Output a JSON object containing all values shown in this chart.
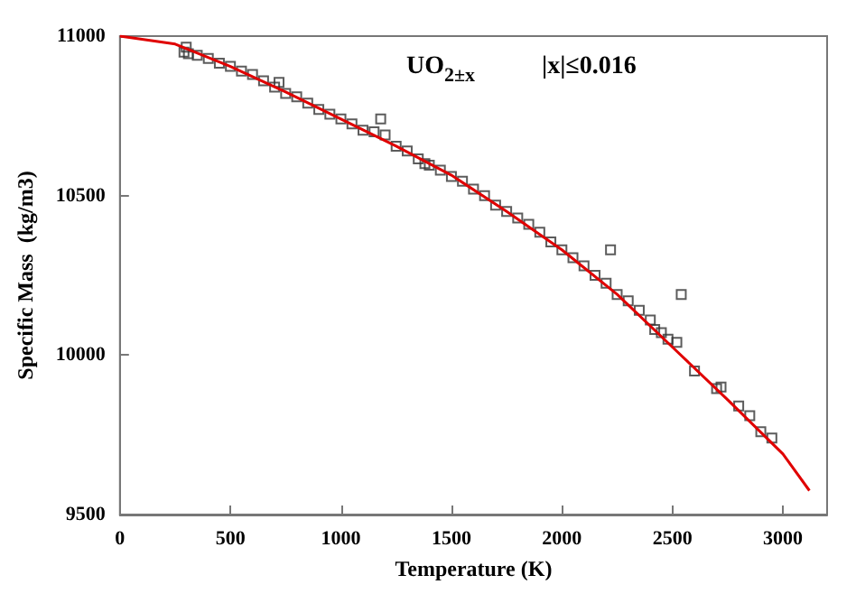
{
  "chart_data": {
    "type": "scatter",
    "xlabel": "Temperature (K)",
    "ylabel": "Specific Mass  (kg/m3)",
    "xlim": [
      0,
      3200
    ],
    "xticks": [
      0,
      500,
      1000,
      1500,
      2000,
      2500,
      3000
    ],
    "ylim": [
      9500,
      11000
    ],
    "yticks": [
      9500,
      10000,
      10500,
      11000
    ],
    "grid": false,
    "annotations": [
      "UO$_{2±x}$",
      "|x|≤0.016"
    ],
    "series": [
      {
        "color": "#333333",
        "marker": "square",
        "x": [
          290,
          300,
          310,
          350,
          400,
          450,
          500,
          550,
          600,
          650,
          700,
          720,
          750,
          800,
          850,
          900,
          950,
          1000,
          1050,
          1100,
          1150,
          1180,
          1200,
          1250,
          1300,
          1350,
          1380,
          1400,
          1450,
          1500,
          1550,
          1600,
          1650,
          1700,
          1750,
          1800,
          1850,
          1900,
          1950,
          2000,
          2050,
          2100,
          2150,
          2200,
          2220,
          2250,
          2300,
          2350,
          2400,
          2420,
          2450,
          2480,
          2520,
          2540,
          2600,
          2700,
          2720,
          2800,
          2850,
          2900,
          2950
        ],
        "values": [
          10950,
          10965,
          10945,
          10940,
          10930,
          10915,
          10905,
          10890,
          10880,
          10860,
          10840,
          10855,
          10820,
          10810,
          10790,
          10770,
          10755,
          10740,
          10725,
          10705,
          10700,
          10740,
          10690,
          10655,
          10640,
          10615,
          10600,
          10595,
          10580,
          10560,
          10545,
          10520,
          10500,
          10470,
          10450,
          10430,
          10410,
          10385,
          10355,
          10330,
          10305,
          10280,
          10250,
          10225,
          10330,
          10190,
          10170,
          10140,
          10110,
          10080,
          10070,
          10050,
          10040,
          10190,
          9950,
          9895,
          9900,
          9840,
          9810,
          9760,
          9740
        ]
      },
      {
        "type": "line",
        "color": "#e00000",
        "marker": "none",
        "x": [
          0,
          250,
          500,
          750,
          1000,
          1250,
          1500,
          1750,
          2000,
          2250,
          2500,
          2750,
          3000,
          3120
        ],
        "values": [
          11000,
          10975,
          10905,
          10825,
          10740,
          10655,
          10564,
          10450,
          10330,
          10190,
          10025,
          9860,
          9690,
          9575
        ]
      }
    ]
  }
}
